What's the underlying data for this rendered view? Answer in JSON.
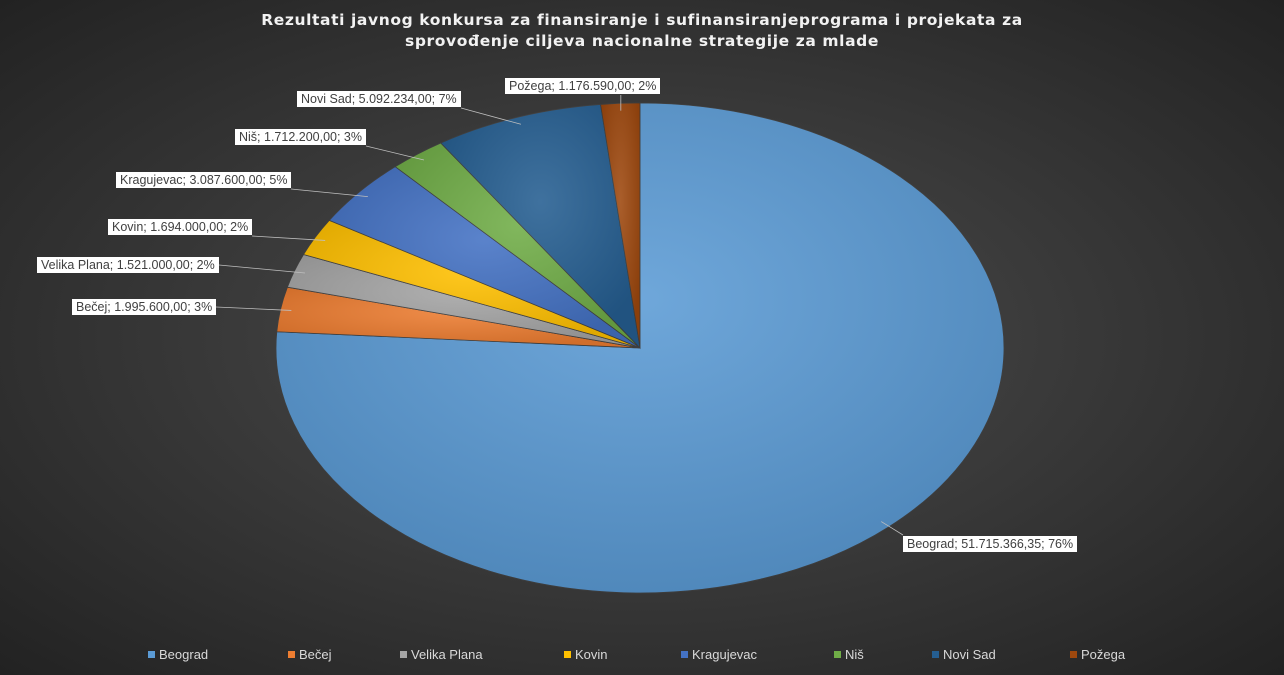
{
  "chart_data": {
    "type": "pie",
    "title": "Rezultati javnog konkursa za finansiranje i sufinansiranjeprograma i projekata za sprovođenje ciljeva nacionalne strategije za mlade",
    "title_lines": [
      "Rezultati javnog konkursa za finansiranje i sufinansiranjeprograma i projekata za",
      "sprovođenje ciljeva nacionalne strategije za mlade"
    ],
    "legend_position": "bottom",
    "categories": [
      "Beograd",
      "Bečej",
      "Velika Plana",
      "Kovin",
      "Kragujevac",
      "Niš",
      "Novi Sad",
      "Požega"
    ],
    "values": [
      51715366.35,
      1995600,
      1521000,
      1694000,
      3087600,
      1712200,
      5092234,
      1176590
    ],
    "percentages": [
      76,
      3,
      2,
      2,
      5,
      3,
      7,
      2
    ],
    "data_labels": [
      "Beograd; 51.715.366,35; 76%",
      "Bečej; 1.995.600,00; 3%",
      "Velika Plana; 1.521.000,00; 2%",
      "Kovin; 1.694.000,00; 2%",
      "Kragujevac; 3.087.600,00; 5%",
      "Niš; 1.712.200,00; 3%",
      "Novi Sad; 5.092.234,00; 7%",
      "Požega; 1.176.590,00; 2%"
    ],
    "colors": [
      "#5b9bd5",
      "#ed7d31",
      "#a5a5a5",
      "#ffc000",
      "#4472c4",
      "#70ad47",
      "#255e91",
      "#9e480e"
    ]
  }
}
